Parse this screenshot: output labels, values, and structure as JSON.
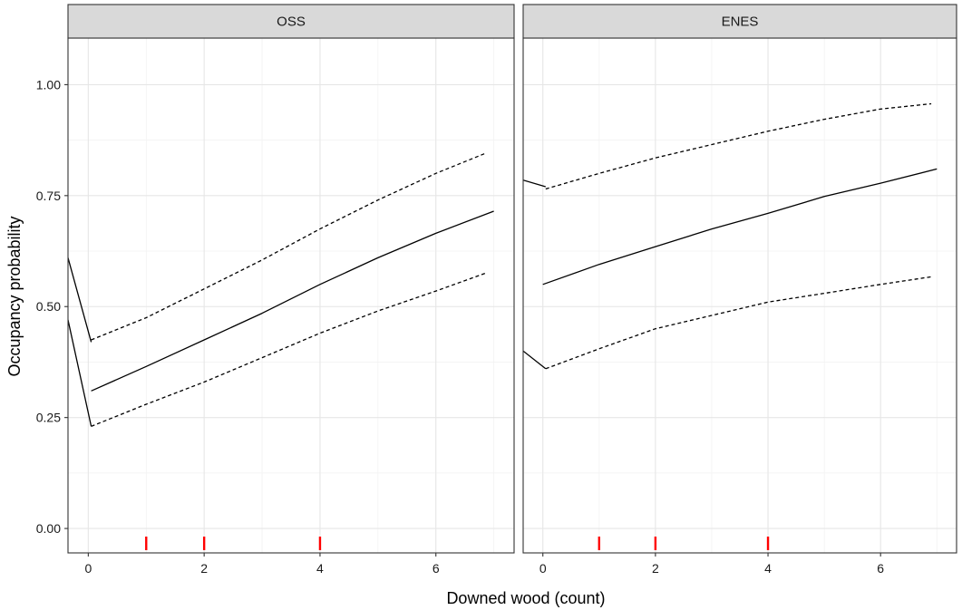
{
  "chart_data": {
    "type": "line",
    "xlabel": "Downed wood (count)",
    "ylabel": "Occupancy probability",
    "xlim": [
      -0.35,
      7.35
    ],
    "ylim": [
      -0.055,
      1.105
    ],
    "x_ticks": [
      0,
      2,
      4,
      6
    ],
    "x_tick_labels": [
      "0",
      "2",
      "4",
      "6"
    ],
    "y_ticks": [
      0,
      0.25,
      0.5,
      0.75,
      1
    ],
    "y_tick_labels": [
      "0.00",
      "0.25",
      "0.50",
      "0.75",
      "1.00"
    ],
    "grid": true,
    "rug_color": "#ff0000",
    "panels": [
      {
        "strip": "OSS",
        "rug": [
          1,
          2,
          4
        ],
        "series": [
          {
            "style": "solid",
            "points": [
              [
                -0.35,
                0.61
              ],
              [
                0.05,
                0.42
              ]
            ]
          },
          {
            "style": "solid",
            "points": [
              [
                -0.35,
                0.47
              ],
              [
                0.05,
                0.23
              ]
            ]
          },
          {
            "style": "solid",
            "points": [
              [
                0.05,
                0.31
              ],
              [
                1,
                0.365
              ],
              [
                2,
                0.425
              ],
              [
                3,
                0.485
              ],
              [
                4,
                0.55
              ],
              [
                5,
                0.61
              ],
              [
                6,
                0.665
              ],
              [
                7,
                0.715
              ]
            ]
          },
          {
            "style": "dashed",
            "points": [
              [
                0.05,
                0.425
              ],
              [
                1,
                0.475
              ],
              [
                2,
                0.54
              ],
              [
                3,
                0.605
              ],
              [
                4,
                0.675
              ],
              [
                5,
                0.74
              ],
              [
                6,
                0.8
              ],
              [
                6.85,
                0.845
              ]
            ]
          },
          {
            "style": "dashed",
            "points": [
              [
                0.05,
                0.23
              ],
              [
                1,
                0.28
              ],
              [
                2,
                0.33
              ],
              [
                3,
                0.385
              ],
              [
                4,
                0.44
              ],
              [
                5,
                0.49
              ],
              [
                6,
                0.535
              ],
              [
                6.85,
                0.575
              ]
            ]
          }
        ]
      },
      {
        "strip": "ENES",
        "rug": [
          1,
          2,
          4
        ],
        "series": [
          {
            "style": "solid",
            "points": [
              [
                -0.35,
                0.785
              ],
              [
                0.05,
                0.77
              ]
            ]
          },
          {
            "style": "solid",
            "points": [
              [
                -0.35,
                0.4
              ],
              [
                0.05,
                0.36
              ]
            ]
          },
          {
            "style": "solid",
            "points": [
              [
                0.0,
                0.55
              ],
              [
                1,
                0.595
              ],
              [
                2,
                0.635
              ],
              [
                3,
                0.675
              ],
              [
                4,
                0.71
              ],
              [
                5,
                0.748
              ],
              [
                6,
                0.778
              ],
              [
                7,
                0.81
              ]
            ]
          },
          {
            "style": "dashed",
            "points": [
              [
                0.05,
                0.765
              ],
              [
                1,
                0.8
              ],
              [
                2,
                0.835
              ],
              [
                3,
                0.865
              ],
              [
                4,
                0.895
              ],
              [
                5,
                0.922
              ],
              [
                6,
                0.945
              ],
              [
                6.9,
                0.957
              ]
            ]
          },
          {
            "style": "dashed",
            "points": [
              [
                0.05,
                0.36
              ],
              [
                1,
                0.405
              ],
              [
                2,
                0.45
              ],
              [
                3,
                0.48
              ],
              [
                4,
                0.51
              ],
              [
                5,
                0.53
              ],
              [
                6,
                0.55
              ],
              [
                6.9,
                0.567
              ]
            ]
          }
        ]
      }
    ]
  }
}
